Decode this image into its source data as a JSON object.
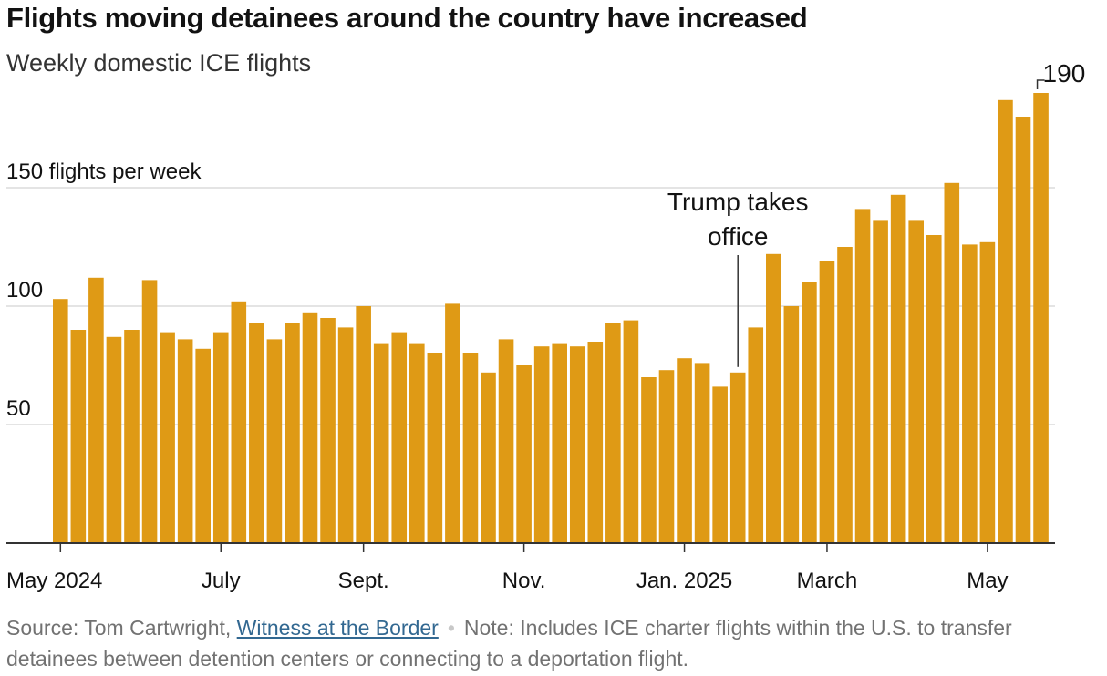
{
  "title": "Flights moving detainees around the country have increased",
  "subtitle": "Weekly domestic ICE flights",
  "colors": {
    "bar": "#df9a15",
    "grid": "#dcdcdc",
    "axis": "#333333",
    "text": "#121212",
    "source": "#727272",
    "link": "#326891"
  },
  "chart_data": {
    "type": "bar",
    "title": "Weekly domestic ICE flights",
    "xlabel": "",
    "ylabel": "flights per week",
    "ylim": [
      0,
      190
    ],
    "yticks": [
      {
        "value": 50,
        "label": "50"
      },
      {
        "value": 100,
        "label": "100"
      },
      {
        "value": 150,
        "label": "150 flights per week"
      }
    ],
    "xticks": [
      {
        "index": 0,
        "label": "May 2024"
      },
      {
        "index": 9,
        "label": "July"
      },
      {
        "index": 17,
        "label": "Sept."
      },
      {
        "index": 26,
        "label": "Nov."
      },
      {
        "index": 35,
        "label": "Jan. 2025"
      },
      {
        "index": 43,
        "label": "March"
      },
      {
        "index": 52,
        "label": "May"
      }
    ],
    "values": [
      103,
      90,
      112,
      87,
      90,
      111,
      89,
      86,
      82,
      89,
      102,
      93,
      86,
      93,
      97,
      95,
      91,
      100,
      84,
      89,
      84,
      80,
      101,
      80,
      72,
      86,
      75,
      83,
      84,
      83,
      85,
      93,
      94,
      70,
      73,
      78,
      76,
      66,
      72,
      91,
      122,
      100,
      110,
      119,
      125,
      141,
      136,
      147,
      136,
      130,
      152,
      126,
      127,
      187,
      180,
      190
    ],
    "annotations": [
      {
        "index": 38,
        "text_lines": [
          "Trump takes",
          "office"
        ]
      },
      {
        "index": 55,
        "text": "190"
      }
    ]
  },
  "source": {
    "prefix": "Source: Tom Cartwright,",
    "link_text": "Witness at the Border",
    "separator": "•",
    "note": "Note: Includes ICE charter flights within the U.S. to transfer detainees between detention centers or connecting to a deportation flight."
  }
}
